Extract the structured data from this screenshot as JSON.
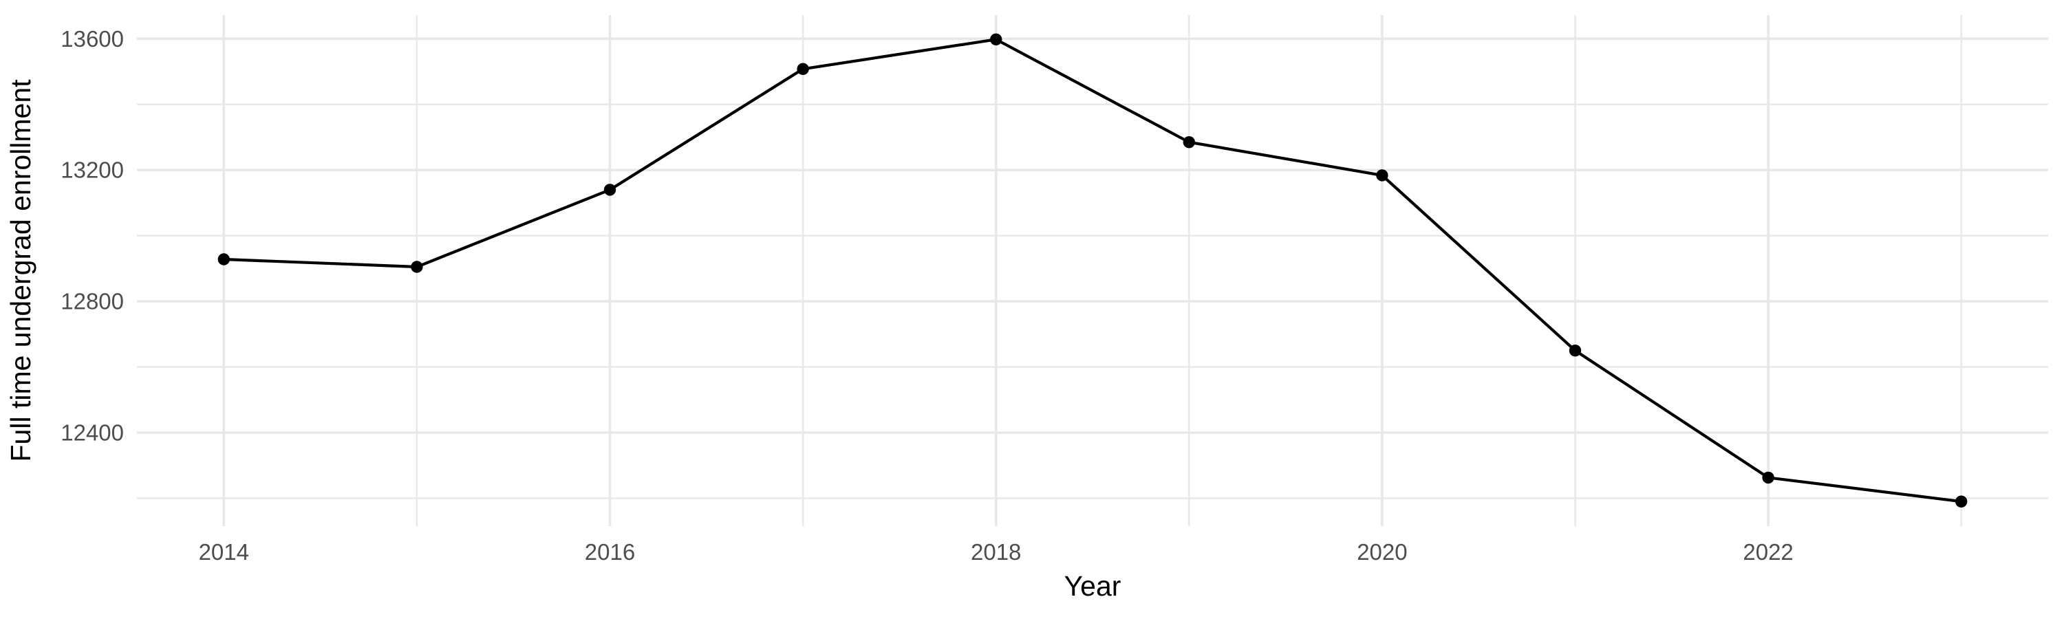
{
  "figure": {
    "background": "#FFFFFF"
  },
  "chart_data": {
    "type": "line",
    "title": "",
    "xlabel": "Year",
    "ylabel": "Full time undergrad enrollment",
    "x": [
      2014,
      2015,
      2016,
      2017,
      2018,
      2019,
      2020,
      2021,
      2022,
      2023
    ],
    "series": [
      {
        "name": "Full time undergrad enrollment",
        "values": [
          12928,
          12905,
          13140,
          13508,
          13598,
          13285,
          13184,
          12650,
          12263,
          12190
        ]
      }
    ],
    "x_major_ticks": [
      2014,
      2016,
      2018,
      2020,
      2022
    ],
    "x_minor_gridlines": [
      2015,
      2017,
      2019,
      2021,
      2023
    ],
    "y_major_ticks": [
      12400,
      12800,
      13200,
      13600
    ],
    "y_minor_gridlines": [
      12200,
      12600,
      13000,
      13400
    ],
    "xlim": [
      2013.55,
      2023.45
    ],
    "ylim": [
      12115,
      13672
    ],
    "grid": "major+minor",
    "legend": "none",
    "style": {
      "line_color": "#000000",
      "point_color": "#000000",
      "grid_color": "#E8E8E8",
      "tick_label_color": "#4D4D4D",
      "axis_title_color": "#000000",
      "background": "#FFFFFF"
    }
  }
}
